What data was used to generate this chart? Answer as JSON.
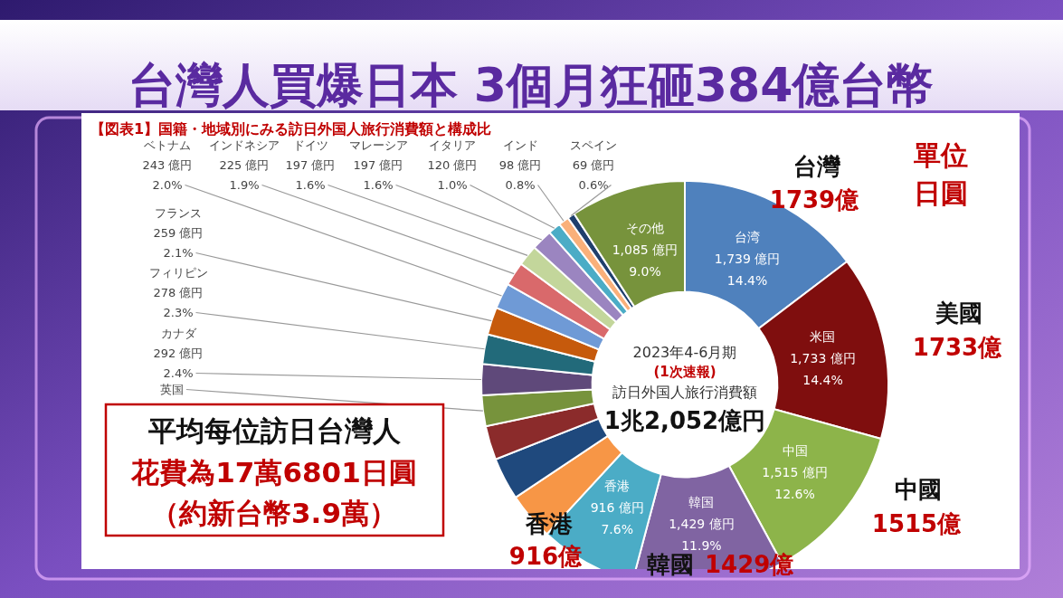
{
  "chart_data": {
    "type": "donut",
    "title": "台灣人買爆日本  3個月狂砸384億台幣",
    "subtitle": "【図表1】国籍・地域別にみる訪日外国人旅行消費額と構成比",
    "categories": [
      "台湾",
      "米国",
      "中国",
      "韓国",
      "香港",
      null,
      null,
      null,
      "英国",
      "カナダ",
      "フィリピン",
      "フランス",
      "ベトナム",
      "インドネシア",
      "ドイツ",
      "マレーシア",
      "イタリア",
      "インド",
      "スペイン",
      "その他"
    ],
    "values": [
      1739,
      1733,
      1515,
      1429,
      916,
      447,
      400,
      320,
      290,
      292,
      278,
      259,
      243,
      225,
      197,
      197,
      120,
      98,
      69,
      1085
    ],
    "value_labels": [
      "1,739 億円\n14.4%",
      "1,733 億円\n14.4%",
      "1,515 億円\n12.6%",
      "1,429 億円\n11.9%",
      "916 億円\n7.6%",
      null,
      null,
      null,
      null,
      "292 億円\n2.4%",
      "278 億円\n2.3%",
      "259 億円\n2.1%",
      "243 億円\n2.0%",
      "225 億円\n1.9%",
      "197 億円\n1.6%",
      "197 億円\n1.6%",
      "120 億円\n1.0%",
      "98 億円\n0.8%",
      "69 億円\n0.6%",
      "1,085 億円\n9.0%"
    ],
    "colors": [
      "#4f81bd",
      "#7f0e0e",
      "#8db44a",
      "#8064a2",
      "#4bacc6",
      "#f79646",
      "#1f497d",
      "#8b2b2b",
      "#77933c",
      "#5f497a",
      "#226a7a",
      "#c65a0c",
      "#6f9ad6",
      "#d9696b",
      "#c3d69b",
      "#9b85c0",
      "#4bacc6",
      "#fab07a",
      "#1f3f6d",
      "#77933c"
    ],
    "annotations": [
      "台灣",
      "1739億",
      "美國",
      "1733億",
      "中國",
      "1515億",
      "韓國",
      "1429億",
      "香港",
      "916億",
      "單位",
      "日圓",
      "平均每位訪日台灣人",
      "花費為17萬6801日圓",
      "（約新台幣3.9萬）",
      "2023年4-6月期",
      "(1次速報)",
      "訪日外国人旅行消費額",
      "1兆2,052億円"
    ]
  }
}
